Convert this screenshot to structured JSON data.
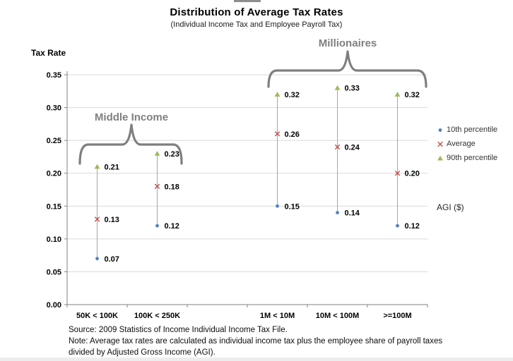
{
  "title": "Distribution of Average Tax Rates",
  "subtitle": "(Individual Income Tax and Employee Payroll Tax)",
  "y_axis_title": "Tax Rate",
  "x_axis_title": "AGI ($)",
  "legend": [
    {
      "label": "10th percentile",
      "marker": "dot",
      "color": "#4F81BD"
    },
    {
      "label": "Average",
      "marker": "x",
      "color": "#C0504D"
    },
    {
      "label": "90th percentile",
      "marker": "triangle",
      "color": "#9BBB59"
    }
  ],
  "notes": [
    "Source: 2009 Statistics of Income Individual Income Tax File.",
    "Note: Average tax rates are calculated as individual income tax plus the employee share of payroll taxes",
    "divided by Adjusted Gross Income (AGI)."
  ],
  "chart_data": {
    "type": "scatter",
    "title": "Distribution of Average Tax Rates",
    "subtitle": "(Individual Income Tax and Employee Payroll Tax)",
    "xlabel": "AGI ($)",
    "ylabel": "Tax Rate",
    "ylim": [
      0,
      0.35
    ],
    "ytick_step": 0.05,
    "grid": true,
    "legend_position": "right",
    "categories": [
      "50K < 100K",
      "100K < 250K",
      "",
      "1M < 10M",
      "10M < 100M",
      ">=100M"
    ],
    "series": [
      {
        "name": "10th percentile",
        "marker": "dot",
        "color": "#4F81BD",
        "values": [
          0.07,
          0.12,
          null,
          0.15,
          0.14,
          0.12
        ]
      },
      {
        "name": "Average",
        "marker": "x",
        "color": "#C0504D",
        "values": [
          0.13,
          0.18,
          null,
          0.26,
          0.24,
          0.2
        ]
      },
      {
        "name": "90th percentile",
        "marker": "triangle",
        "color": "#9BBB59",
        "values": [
          0.21,
          0.23,
          null,
          0.32,
          0.33,
          0.32
        ]
      }
    ],
    "groups": [
      {
        "label": "Middle Income",
        "categories": [
          "50K < 100K",
          "100K < 250K"
        ]
      },
      {
        "label": "Millionaires",
        "categories": [
          "1M < 10M",
          "10M < 100M",
          ">=100M"
        ]
      }
    ],
    "connector_line_color": "#A6A6A6",
    "gridline_color": "#D9D9D9",
    "axis_color": "#808080",
    "brace_color": "#7F7F7F"
  }
}
